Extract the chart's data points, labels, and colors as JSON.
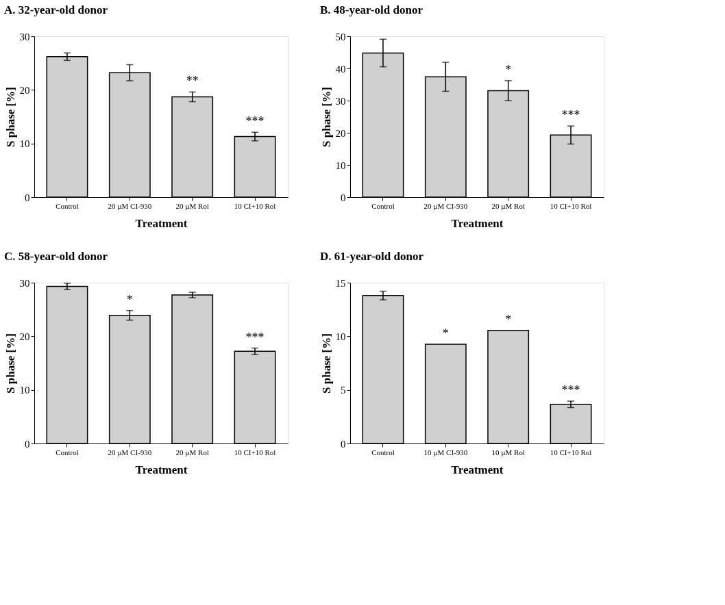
{
  "chart_data": [
    {
      "type": "bar",
      "title": "A. 32-year-old donor",
      "xlabel": "Treatment",
      "ylabel": "S phase [%]",
      "categories": [
        "Control",
        "20 µM CI-930",
        "20 µM Rol",
        "10 CI+10 Rol"
      ],
      "values": [
        26.2,
        23.2,
        18.7,
        11.3
      ],
      "errors": [
        0.7,
        1.5,
        0.9,
        0.8
      ],
      "color": "#d0d0d0",
      "ylim": [
        0,
        30
      ],
      "yticks": [
        0,
        10,
        20,
        30
      ],
      "value_labels": [
        null,
        null,
        "**",
        "***"
      ]
    },
    {
      "type": "bar",
      "title": "B. 48-year-old donor",
      "xlabel": "Treatment",
      "ylabel": "S phase [%]",
      "categories": [
        "Control",
        "20 µM CI-930",
        "20 µM Rol",
        "10 CI+10 Rol"
      ],
      "values": [
        44.8,
        37.4,
        33.1,
        19.3
      ],
      "errors": [
        4.3,
        4.5,
        3.1,
        2.8
      ],
      "color": "#d0d0d0",
      "ylim": [
        0,
        50
      ],
      "yticks": [
        0,
        10,
        20,
        30,
        40,
        50
      ],
      "value_labels": [
        null,
        null,
        "*",
        "***"
      ]
    },
    {
      "type": "bar",
      "title": "C. 58-year-old donor",
      "xlabel": "Treatment",
      "ylabel": "S phase [%]",
      "categories": [
        "Control",
        "20 µM CI-930",
        "20 µM Rol",
        "10 CI+10 Rol"
      ],
      "values": [
        29.3,
        23.9,
        27.7,
        17.2
      ],
      "errors": [
        0.6,
        0.9,
        0.5,
        0.6
      ],
      "color": "#d0d0d0",
      "ylim": [
        0,
        30
      ],
      "yticks": [
        0,
        10,
        20,
        30
      ],
      "value_labels": [
        null,
        "*",
        null,
        "***"
      ]
    },
    {
      "type": "bar",
      "title": "D. 61-year-old donor",
      "xlabel": "Treatment",
      "ylabel": "S phase [%]",
      "categories": [
        "Control",
        "10 µM CI-930",
        "10 µM Rol",
        "10 CI+10 Rol"
      ],
      "values": [
        13.8,
        9.25,
        10.55,
        3.65
      ],
      "errors": [
        0.4,
        null,
        null,
        0.3
      ],
      "color": "#d0d0d0",
      "ylim": [
        0,
        15
      ],
      "yticks": [
        0,
        5,
        10,
        15
      ],
      "value_labels": [
        null,
        "*",
        "*",
        "***"
      ]
    }
  ]
}
